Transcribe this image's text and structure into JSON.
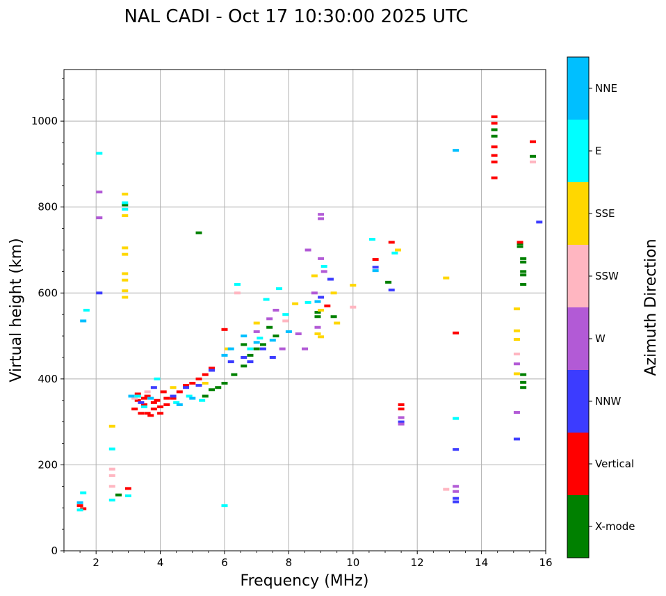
{
  "chart_data": {
    "type": "scatter",
    "title": "NAL CADI - Oct 17 10:30:00 2025 UTC",
    "xlabel": "Frequency (MHz)",
    "ylabel": "Virtual height (km)",
    "xlim": [
      1,
      16
    ],
    "ylim": [
      0,
      1120
    ],
    "xticks": [
      2,
      4,
      6,
      8,
      10,
      12,
      14,
      16
    ],
    "yticks": [
      0,
      200,
      400,
      600,
      800,
      1000
    ],
    "grid": true,
    "colorbar": {
      "label": "Azimuth Direction",
      "categories": [
        {
          "name": "X-mode",
          "color": "#008000"
        },
        {
          "name": "Vertical",
          "color": "#ff0000"
        },
        {
          "name": "NNW",
          "color": "#3c3cff"
        },
        {
          "name": "W",
          "color": "#b25ad6"
        },
        {
          "name": "SSW",
          "color": "#ffb6c1"
        },
        {
          "name": "SSE",
          "color": "#ffd700"
        },
        {
          "name": "E",
          "color": "#00ffff"
        },
        {
          "name": "NNE",
          "color": "#00bfff"
        }
      ]
    },
    "series": [
      {
        "name": "X-mode",
        "points": [
          [
            2.7,
            130
          ],
          [
            5.2,
            740
          ],
          [
            5.4,
            360
          ],
          [
            5.6,
            375
          ],
          [
            5.8,
            380
          ],
          [
            6.0,
            390
          ],
          [
            6.3,
            410
          ],
          [
            6.6,
            430
          ],
          [
            6.8,
            455
          ],
          [
            7.0,
            470
          ],
          [
            7.2,
            480
          ],
          [
            7.6,
            500
          ],
          [
            8.9,
            555
          ],
          [
            8.9,
            545
          ],
          [
            9.4,
            545
          ],
          [
            11.1,
            625
          ],
          [
            15.2,
            715
          ],
          [
            15.2,
            708
          ],
          [
            15.3,
            680
          ],
          [
            15.3,
            672
          ],
          [
            15.3,
            650
          ],
          [
            15.3,
            642
          ],
          [
            15.3,
            620
          ],
          [
            15.3,
            410
          ],
          [
            15.3,
            392
          ],
          [
            15.3,
            380
          ],
          [
            15.6,
            918
          ],
          [
            14.4,
            965
          ],
          [
            14.4,
            980
          ],
          [
            2.9,
            805
          ],
          [
            6.6,
            480
          ],
          [
            7.4,
            520
          ]
        ]
      },
      {
        "name": "Vertical",
        "points": [
          [
            1.5,
            105
          ],
          [
            1.6,
            98
          ],
          [
            3.0,
            145
          ],
          [
            3.2,
            330
          ],
          [
            3.3,
            350
          ],
          [
            3.4,
            320
          ],
          [
            3.5,
            340
          ],
          [
            3.6,
            360
          ],
          [
            3.7,
            315
          ],
          [
            3.8,
            330
          ],
          [
            3.9,
            350
          ],
          [
            4.0,
            320
          ],
          [
            4.1,
            370
          ],
          [
            4.2,
            340
          ],
          [
            4.4,
            355
          ],
          [
            4.6,
            370
          ],
          [
            4.8,
            385
          ],
          [
            5.0,
            390
          ],
          [
            5.2,
            400
          ],
          [
            5.4,
            410
          ],
          [
            5.6,
            425
          ],
          [
            6.0,
            515
          ],
          [
            9.2,
            570
          ],
          [
            10.7,
            678
          ],
          [
            11.2,
            718
          ],
          [
            11.5,
            340
          ],
          [
            11.5,
            330
          ],
          [
            13.2,
            507
          ],
          [
            14.4,
            1010
          ],
          [
            14.4,
            995
          ],
          [
            14.4,
            940
          ],
          [
            14.4,
            920
          ],
          [
            14.4,
            905
          ],
          [
            14.4,
            868
          ],
          [
            15.2,
            718
          ],
          [
            15.6,
            952
          ],
          [
            3.3,
            365
          ],
          [
            3.5,
            355
          ],
          [
            3.6,
            320
          ],
          [
            3.8,
            345
          ],
          [
            4.0,
            335
          ],
          [
            4.2,
            355
          ]
        ]
      },
      {
        "name": "NNW",
        "points": [
          [
            3.4,
            345
          ],
          [
            3.8,
            380
          ],
          [
            4.4,
            360
          ],
          [
            4.8,
            380
          ],
          [
            5.2,
            385
          ],
          [
            5.6,
            420
          ],
          [
            6.2,
            440
          ],
          [
            6.6,
            450
          ],
          [
            6.8,
            440
          ],
          [
            7.2,
            470
          ],
          [
            7.5,
            450
          ],
          [
            9.0,
            590
          ],
          [
            9.3,
            632
          ],
          [
            10.7,
            660
          ],
          [
            11.2,
            607
          ],
          [
            13.2,
            236
          ],
          [
            13.2,
            122
          ],
          [
            13.2,
            114
          ],
          [
            15.1,
            260
          ],
          [
            15.8,
            765
          ],
          [
            2.1,
            600
          ],
          [
            11.5,
            300
          ]
        ]
      },
      {
        "name": "W",
        "points": [
          [
            7.0,
            510
          ],
          [
            7.4,
            540
          ],
          [
            7.6,
            560
          ],
          [
            8.3,
            505
          ],
          [
            8.5,
            470
          ],
          [
            8.8,
            600
          ],
          [
            8.9,
            520
          ],
          [
            9.0,
            783
          ],
          [
            9.0,
            773
          ],
          [
            9.0,
            680
          ],
          [
            9.1,
            650
          ],
          [
            11.5,
            295
          ],
          [
            11.5,
            310
          ],
          [
            13.2,
            150
          ],
          [
            13.2,
            138
          ],
          [
            15.1,
            322
          ],
          [
            15.1,
            435
          ],
          [
            2.1,
            835
          ],
          [
            2.1,
            775
          ],
          [
            8.6,
            700
          ],
          [
            7.8,
            470
          ]
        ]
      },
      {
        "name": "SSW",
        "points": [
          [
            2.5,
            190
          ],
          [
            2.5,
            175
          ],
          [
            2.5,
            150
          ],
          [
            3.2,
            355
          ],
          [
            3.6,
            370
          ],
          [
            6.4,
            600
          ],
          [
            12.9,
            143
          ],
          [
            15.1,
            458
          ],
          [
            15.6,
            905
          ],
          [
            10.0,
            567
          ],
          [
            7.9,
            535
          ]
        ]
      },
      {
        "name": "SSE",
        "points": [
          [
            2.5,
            290
          ],
          [
            2.9,
            830
          ],
          [
            2.9,
            780
          ],
          [
            2.9,
            705
          ],
          [
            2.9,
            690
          ],
          [
            2.9,
            645
          ],
          [
            2.9,
            630
          ],
          [
            2.9,
            605
          ],
          [
            2.9,
            590
          ],
          [
            6.1,
            470
          ],
          [
            7.0,
            530
          ],
          [
            8.2,
            575
          ],
          [
            8.8,
            640
          ],
          [
            8.9,
            505
          ],
          [
            9.0,
            498
          ],
          [
            9.0,
            560
          ],
          [
            9.5,
            530
          ],
          [
            10.0,
            618
          ],
          [
            11.4,
            700
          ],
          [
            12.9,
            635
          ],
          [
            15.1,
            563
          ],
          [
            15.1,
            512
          ],
          [
            15.1,
            492
          ],
          [
            15.1,
            412
          ],
          [
            4.4,
            380
          ],
          [
            5.4,
            390
          ],
          [
            9.4,
            600
          ]
        ]
      },
      {
        "name": "E",
        "points": [
          [
            1.5,
            95
          ],
          [
            1.6,
            135
          ],
          [
            1.7,
            560
          ],
          [
            2.1,
            925
          ],
          [
            2.5,
            237
          ],
          [
            2.5,
            118
          ],
          [
            2.9,
            810
          ],
          [
            2.9,
            795
          ],
          [
            3.0,
            128
          ],
          [
            3.3,
            360
          ],
          [
            3.5,
            335
          ],
          [
            3.9,
            400
          ],
          [
            4.5,
            345
          ],
          [
            5.3,
            350
          ],
          [
            6.0,
            105
          ],
          [
            6.4,
            620
          ],
          [
            7.3,
            585
          ],
          [
            7.7,
            610
          ],
          [
            7.9,
            550
          ],
          [
            8.6,
            578
          ],
          [
            9.1,
            662
          ],
          [
            10.6,
            725
          ],
          [
            11.3,
            693
          ],
          [
            13.2,
            308
          ],
          [
            6.8,
            470
          ],
          [
            7.1,
            495
          ],
          [
            4.9,
            360
          ]
        ]
      },
      {
        "name": "NNE",
        "points": [
          [
            1.5,
            112
          ],
          [
            1.6,
            535
          ],
          [
            3.1,
            360
          ],
          [
            3.7,
            355
          ],
          [
            4.6,
            340
          ],
          [
            5.0,
            355
          ],
          [
            6.0,
            455
          ],
          [
            6.6,
            500
          ],
          [
            7.0,
            485
          ],
          [
            7.5,
            490
          ],
          [
            8.9,
            580
          ],
          [
            10.7,
            652
          ],
          [
            13.2,
            932
          ],
          [
            8.0,
            510
          ],
          [
            6.2,
            470
          ]
        ]
      }
    ]
  }
}
